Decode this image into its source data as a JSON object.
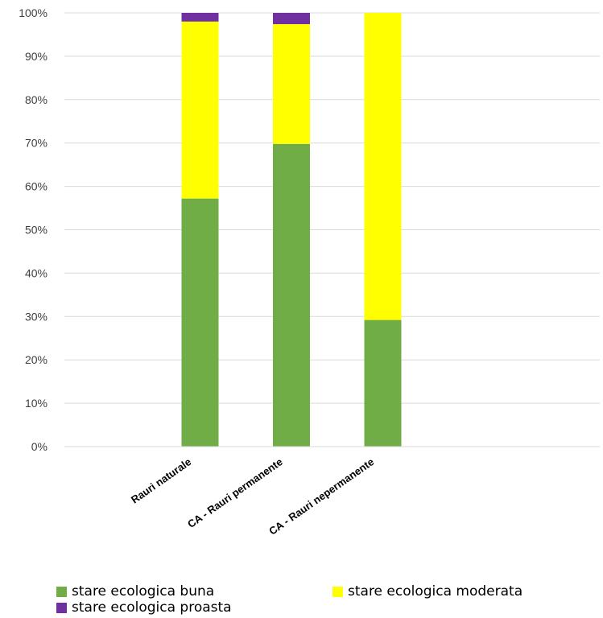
{
  "chart_data": {
    "type": "bar",
    "stacked": true,
    "categories": [
      "Rauri naturale",
      "CA - Rauri permanente",
      "CA - Rauri nepermanente"
    ],
    "series": [
      {
        "name": "stare ecologica buna",
        "color": "#70AD47",
        "values": [
          57.2,
          69.8,
          29.2
        ]
      },
      {
        "name": "stare ecologica moderata",
        "color": "#FFFF00",
        "values": [
          40.8,
          27.6,
          70.8
        ]
      },
      {
        "name": "stare ecologica proasta",
        "color": "#7030A0",
        "values": [
          2.0,
          2.6,
          0.0
        ]
      }
    ],
    "y_ticks": [
      "0%",
      "10%",
      "20%",
      "30%",
      "40%",
      "50%",
      "60%",
      "70%",
      "80%",
      "90%",
      "100%"
    ],
    "ylim": [
      0,
      100
    ],
    "grid": true,
    "legend_position": "bottom"
  }
}
